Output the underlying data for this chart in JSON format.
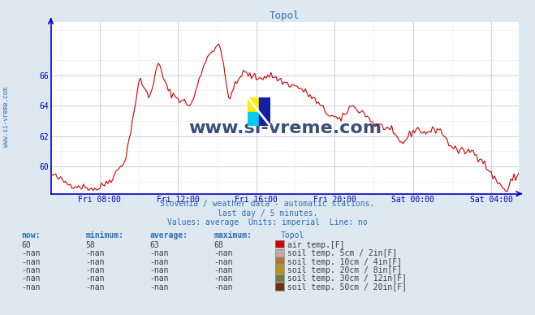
{
  "title": "Topol",
  "title_color": "#3070b0",
  "bg_color": "#dde8f0",
  "plot_bg_color": "#ffffff",
  "line_color": "#cc0000",
  "axis_color": "#0000bb",
  "grid_color_major": "#b0bcd8",
  "grid_color_minor": "#e8c0c0",
  "xlabel_ticks": [
    "Fri 08:00",
    "Fri 12:00",
    "Fri 16:00",
    "Fri 20:00",
    "Sat 00:00",
    "Sat 04:00"
  ],
  "yticks": [
    60,
    62,
    64,
    66
  ],
  "ylim": [
    58.2,
    69.5
  ],
  "subtitle1": "Slovenia / weather data - automatic stations.",
  "subtitle2": "last day / 5 minutes.",
  "subtitle3": "Values: average  Units: imperial  Line: no",
  "subtitle_color": "#3070b0",
  "watermark_text": "www.si-vreme.com",
  "watermark_color": "#1a3060",
  "table_headers": [
    "now:",
    "minimum:",
    "average:",
    "maximum:",
    "Topol"
  ],
  "table_header_color": "#3070b0",
  "table_row1": [
    "60",
    "58",
    "63",
    "68"
  ],
  "table_row1_label": "air temp.[F]",
  "table_row1_color": "#cc0000",
  "table_rows_nan": [
    {
      "label": "soil temp. 5cm / 2in[F]",
      "color": "#c8a8a8"
    },
    {
      "label": "soil temp. 10cm / 4in[F]",
      "color": "#b07828"
    },
    {
      "label": "soil temp. 20cm / 8in[F]",
      "color": "#b89020"
    },
    {
      "label": "soil temp. 30cm / 12in[F]",
      "color": "#787848"
    },
    {
      "label": "soil temp. 50cm / 20in[F]",
      "color": "#703010"
    }
  ],
  "sidebar_text": "www.si-vreme.com",
  "sidebar_color": "#3070b0",
  "keypoints_t": [
    0.0,
    0.04,
    0.1,
    0.13,
    0.16,
    0.19,
    0.21,
    0.23,
    0.25,
    0.27,
    0.3,
    0.33,
    0.36,
    0.38,
    0.41,
    0.44,
    0.47,
    0.5,
    0.53,
    0.56,
    0.59,
    0.62,
    0.64,
    0.67,
    0.69,
    0.72,
    0.75,
    0.78,
    0.8,
    0.83,
    0.85,
    0.87,
    0.9,
    0.92,
    0.94,
    0.96,
    0.975,
    0.985,
    0.993,
    1.0
  ],
  "keypoints_v": [
    59.5,
    58.8,
    58.5,
    59.2,
    60.5,
    65.8,
    64.5,
    66.8,
    65.0,
    64.5,
    64.0,
    67.0,
    68.2,
    64.5,
    66.2,
    65.8,
    66.0,
    65.5,
    65.2,
    64.5,
    63.5,
    63.0,
    64.0,
    63.5,
    62.8,
    62.5,
    61.5,
    62.5,
    62.2,
    62.5,
    61.5,
    61.0,
    61.0,
    60.5,
    59.5,
    58.8,
    58.3,
    59.2,
    59.3,
    59.5
  ]
}
